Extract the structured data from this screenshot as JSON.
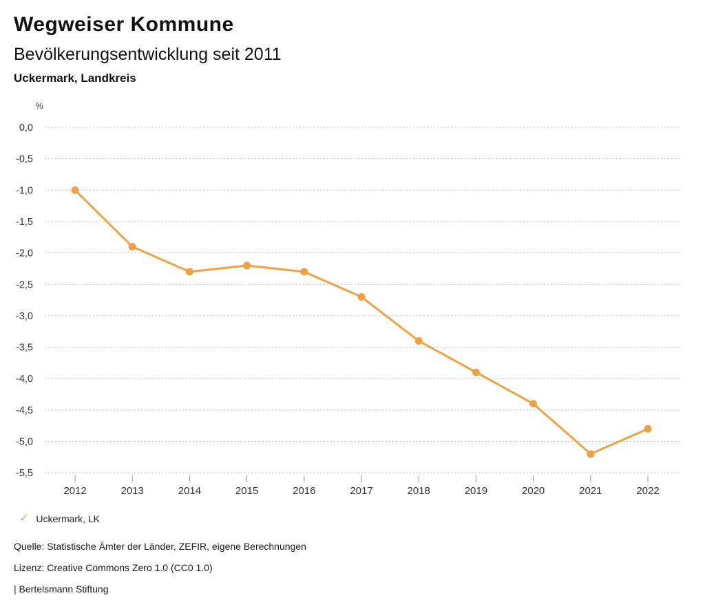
{
  "header": {
    "title": "Wegweiser Kommune",
    "subtitle": "Bevölkerungsentwicklung seit 2011",
    "region": "Uckermark, Landkreis"
  },
  "chart_data": {
    "type": "line",
    "title": "Bevölkerungsentwicklung seit 2011",
    "region": "Uckermark, Landkreis",
    "ylabel": "%",
    "xlabel": "",
    "x": [
      2012,
      2013,
      2014,
      2015,
      2016,
      2017,
      2018,
      2019,
      2020,
      2021,
      2022
    ],
    "series": [
      {
        "name": "Uckermark, LK",
        "values": [
          -1.0,
          -1.9,
          -2.3,
          -2.2,
          -2.3,
          -2.7,
          -3.4,
          -3.9,
          -4.4,
          -5.2,
          -4.8
        ],
        "color": "#EFA143"
      }
    ],
    "ylim": [
      -5.5,
      0.0
    ],
    "ytick_values": [
      0.0,
      -0.5,
      -1.0,
      -1.5,
      -2.0,
      -2.5,
      -3.0,
      -3.5,
      -4.0,
      -4.5,
      -5.0,
      -5.5
    ],
    "ytick_labels": [
      "0,0",
      "-0,5",
      "-1,0",
      "-1,5",
      "-2,0",
      "-2,5",
      "-3,0",
      "-3,5",
      "-4,0",
      "-4,5",
      "-5,0",
      "-5,5"
    ],
    "grid": "horizontal-dotted",
    "legend_position": "bottom-left"
  },
  "legend": {
    "icon": "check",
    "glyph": "✓",
    "label": "Uckermark, LK"
  },
  "footer": {
    "source": "Quelle: Statistische Ämter der Länder, ZEFIR, eigene Berechnungen",
    "license": "Lizenz: Creative Commons Zero 1.0 (CC0 1.0)",
    "attribution": "| Bertelsmann Stiftung"
  },
  "colors": {
    "series": "#EFA143",
    "grid": "#b9b9b9",
    "tick_text": "#333333",
    "axis_tick": "#999999",
    "text": "#111111"
  }
}
